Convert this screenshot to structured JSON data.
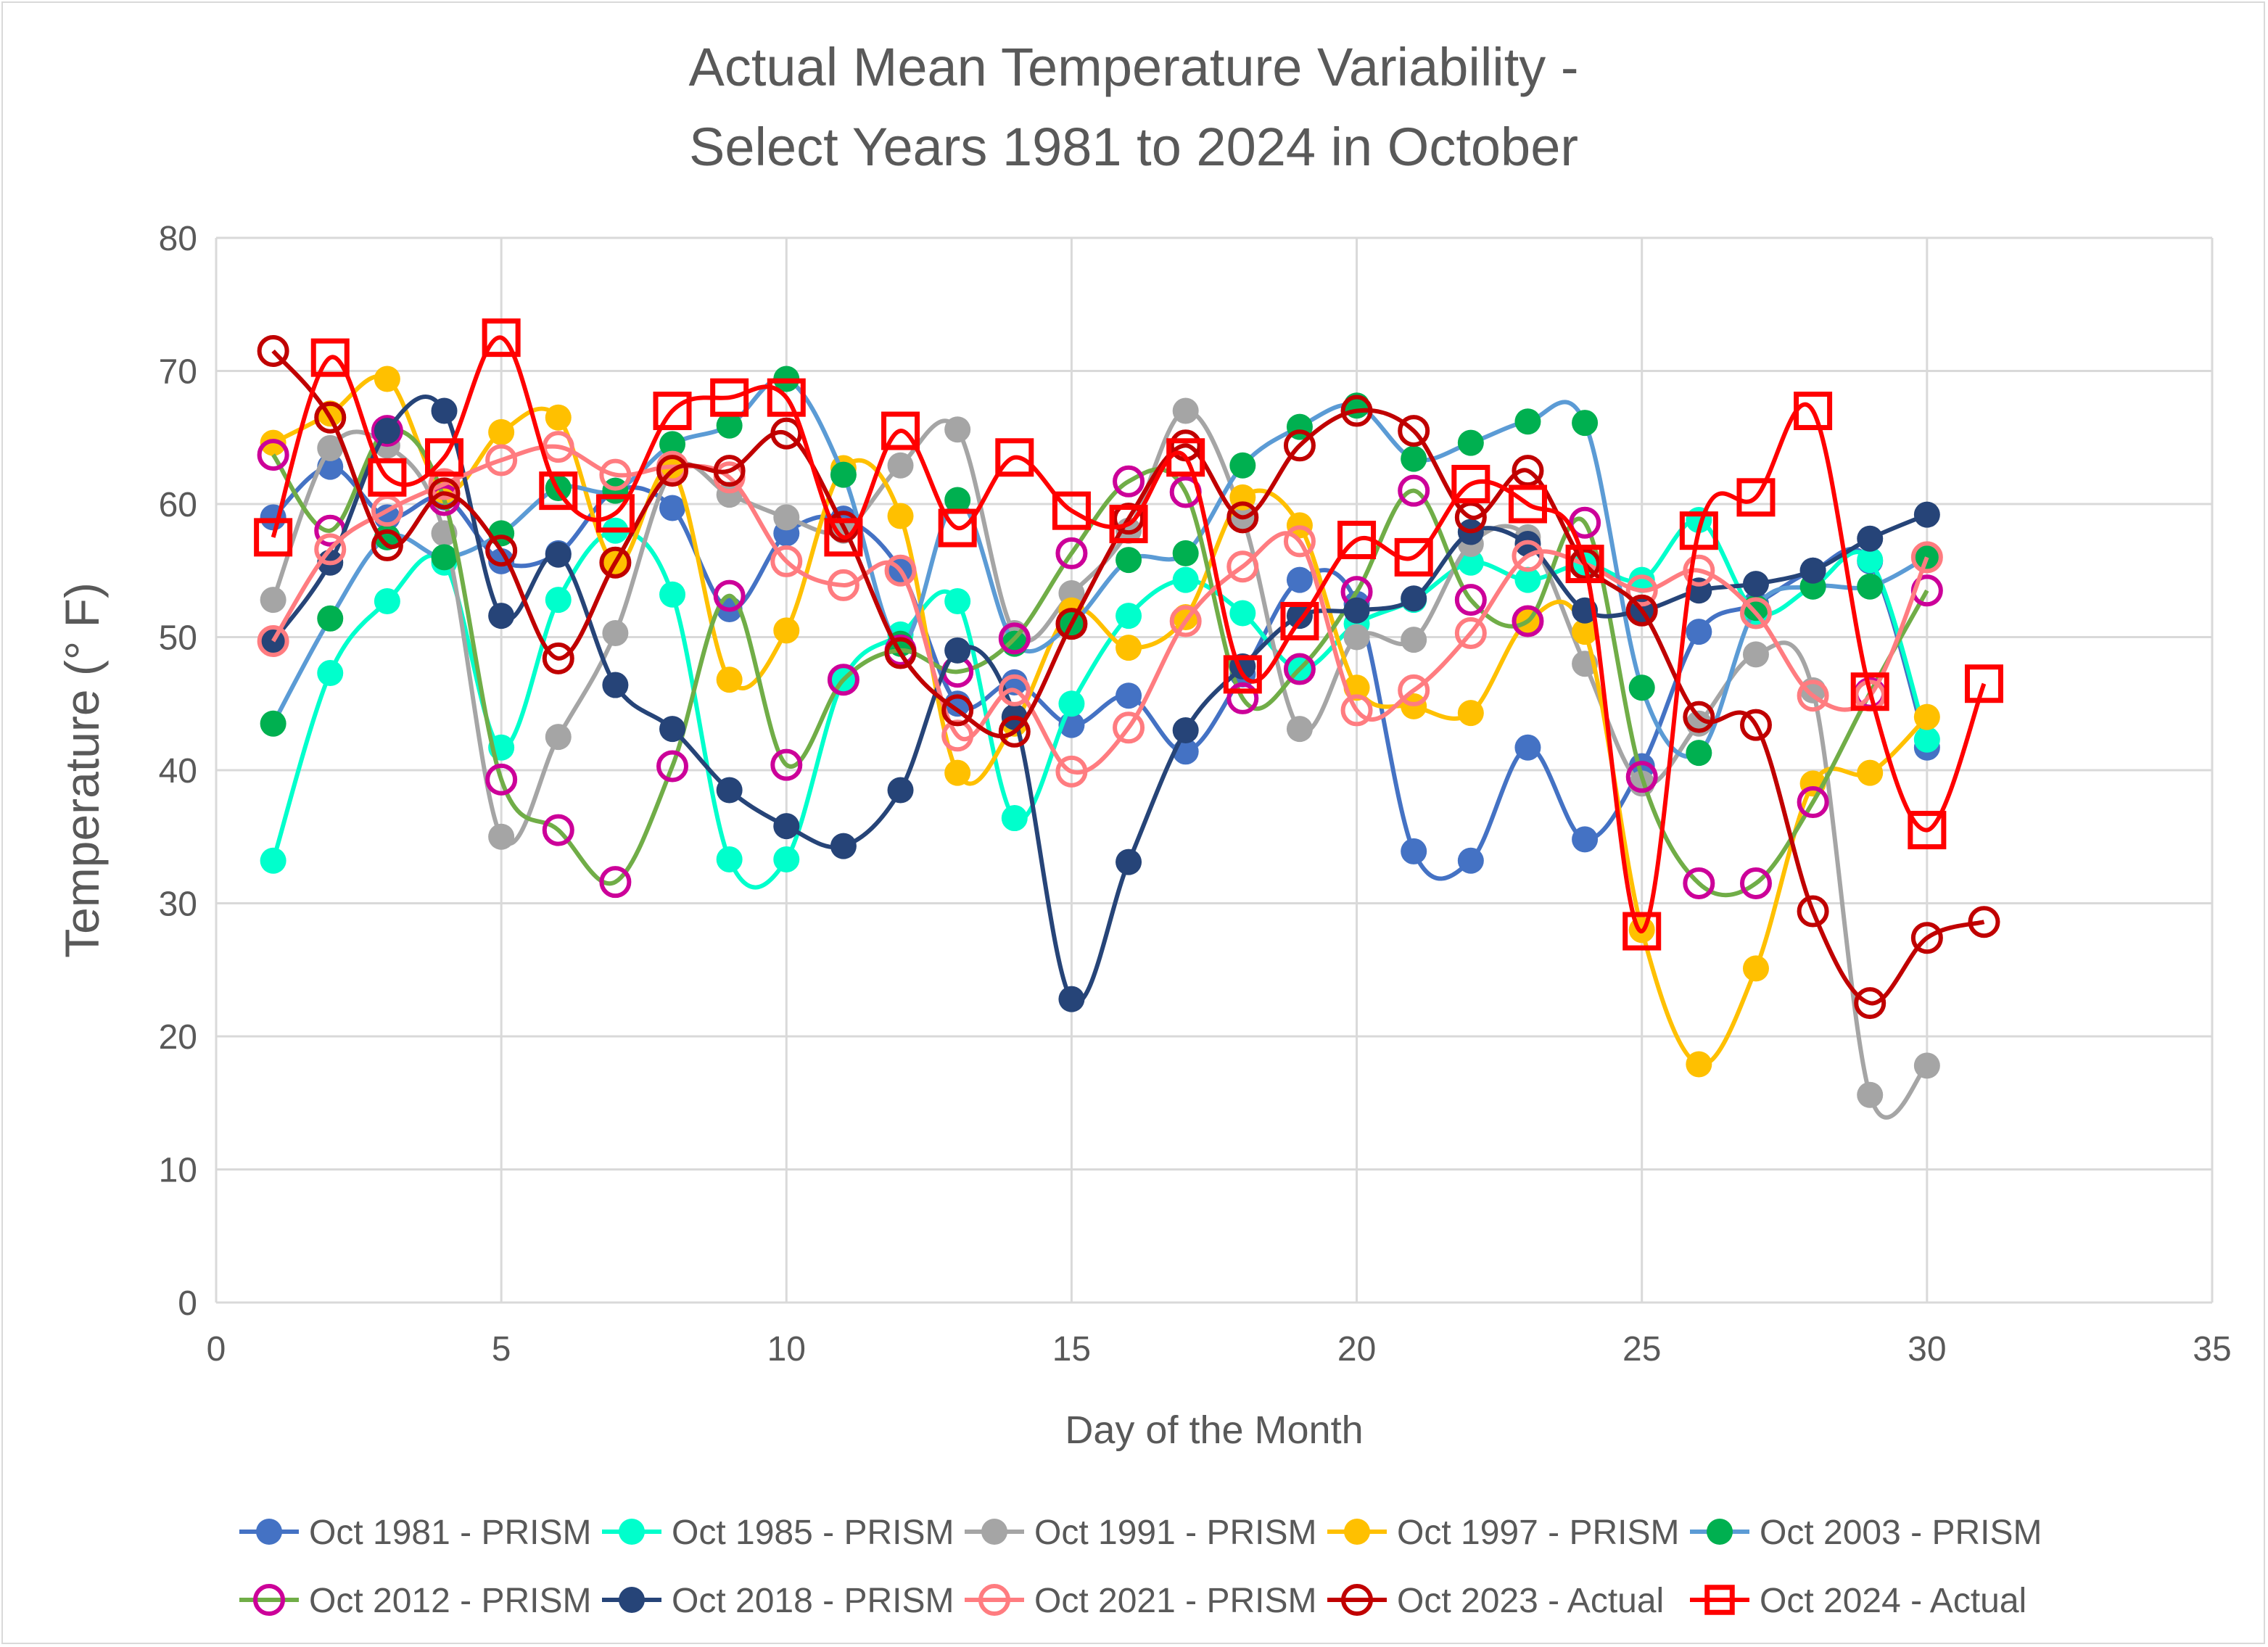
{
  "chart_data": {
    "type": "line",
    "title_lines": [
      "Actual Mean Temperature Variability -",
      "Select Years 1981 to 2024 in October"
    ],
    "xlabel": "Day of the Month",
    "ylabel": "Temperature (° F)",
    "xlim": [
      0,
      35
    ],
    "ylim": [
      0,
      80
    ],
    "xticks": [
      0,
      5,
      10,
      15,
      20,
      25,
      30,
      35
    ],
    "yticks": [
      0,
      10,
      20,
      30,
      40,
      50,
      60,
      70,
      80
    ],
    "grid": true,
    "legend_position": "bottom",
    "series": [
      {
        "name": "Oct 1981 - PRISM",
        "color": "#4472C4",
        "line": "#4472C4",
        "marker": "filled-circle",
        "values": [
          59,
          62.8,
          59,
          60.5,
          55.7,
          56.3,
          61,
          59.7,
          52.1,
          57.8,
          58.9,
          55,
          45,
          46.6,
          43.4,
          45.6,
          41.4,
          47.2,
          54.3,
          52.5,
          33.9,
          33.2,
          41.7,
          34.8,
          40.3,
          50.4,
          52.5,
          55,
          55.7,
          41.7
        ]
      },
      {
        "name": "Oct 1985 - PRISM",
        "color": "#00FFCC",
        "line": "#00FFCC",
        "marker": "filled-circle",
        "values": [
          33.2,
          47.3,
          52.7,
          55.6,
          41.7,
          52.8,
          58,
          53.2,
          33.3,
          33.3,
          46.8,
          50.2,
          52.7,
          36.4,
          45,
          51.6,
          54.3,
          51.8,
          47.6,
          51,
          52.8,
          55.6,
          54.3,
          55.5,
          54.3,
          58.8,
          51.9,
          53.8,
          55.8,
          42.3
        ]
      },
      {
        "name": "Oct 1991 - PRISM",
        "color": "#A5A5A5",
        "line": "#A5A5A5",
        "marker": "filled-circle",
        "values": [
          52.8,
          64.2,
          64.4,
          57.8,
          35,
          42.5,
          50.3,
          62.5,
          60.7,
          59,
          58,
          62.9,
          65.6,
          50.3,
          53.3,
          58,
          67,
          59,
          43.1,
          50,
          49.8,
          57,
          57.5,
          48,
          39,
          43.5,
          48.7,
          46,
          15.6,
          17.8
        ]
      },
      {
        "name": "Oct 1997 - PRISM",
        "color": "#FFC000",
        "line": "#FFC000",
        "marker": "filled-circle",
        "values": [
          64.6,
          66.8,
          69.4,
          61,
          65.4,
          66.5,
          55.5,
          62.5,
          46.8,
          50.5,
          62.7,
          59.1,
          39.8,
          43.5,
          52,
          49.2,
          51.5,
          60.5,
          58.4,
          46.2,
          44.8,
          44.3,
          51.2,
          50.4,
          28,
          17.9,
          25.1,
          39,
          39.8,
          44
        ]
      },
      {
        "name": "Oct 2003 - PRISM",
        "color": "#00B050",
        "line": "#5B9BD5",
        "marker": "filled-circle",
        "values": [
          43.5,
          51.4,
          57.5,
          56,
          57.8,
          61.2,
          61,
          64.5,
          65.9,
          69.4,
          62.2,
          49.5,
          60.3,
          49.5,
          51,
          55.8,
          56.3,
          62.9,
          65.8,
          67.4,
          63.4,
          64.6,
          66.2,
          66.1,
          46.2,
          41.3,
          52.2,
          53.8,
          53.8,
          56
        ]
      },
      {
        "name": "Oct 2012 - PRISM",
        "color": "#CC0099",
        "line": "#70AD47",
        "marker": "open-circle",
        "values": [
          63.7,
          58,
          65.5,
          60.3,
          39.3,
          35.5,
          31.6,
          40.3,
          53.1,
          40.4,
          46.8,
          49,
          47.4,
          49.9,
          56.3,
          61.7,
          60.9,
          45.4,
          47.6,
          53.4,
          61,
          52.8,
          51.2,
          58.6,
          39.5,
          31.5,
          31.5,
          37.6,
          45.8,
          53.5
        ]
      },
      {
        "name": "Oct 2018 - PRISM",
        "color": "#264478",
        "line": "#264478",
        "marker": "filled-circle",
        "values": [
          49.7,
          55.6,
          65.5,
          67,
          51.6,
          56.2,
          46.4,
          43.1,
          38.5,
          35.8,
          34.3,
          38.5,
          49,
          44,
          22.8,
          33.1,
          43,
          47.8,
          51.6,
          52,
          52.9,
          57.9,
          57,
          52,
          52,
          53.5,
          54,
          55,
          57.4,
          59.2
        ]
      },
      {
        "name": "Oct 2021 - PRISM",
        "color": "#FF7C80",
        "line": "#FF7C80",
        "marker": "open-circle",
        "values": [
          49.7,
          56.6,
          59.5,
          61.5,
          63.3,
          64.3,
          62.2,
          62.8,
          62,
          55.7,
          53.9,
          55,
          42.6,
          46,
          39.9,
          43.2,
          51.2,
          55.3,
          57.2,
          44.5,
          46,
          50.3,
          56.1,
          55.5,
          53.5,
          55,
          51.8,
          45.6,
          45.6,
          56
        ]
      },
      {
        "name": "Oct 2023 - Actual",
        "color": "#C00000",
        "line": "#C00000",
        "marker": "open-circle",
        "values": [
          71.5,
          66.5,
          56.9,
          60.8,
          56.5,
          48.4,
          55.6,
          62.5,
          62.5,
          65.3,
          58.3,
          48.8,
          44.5,
          42.9,
          51,
          58.9,
          64.4,
          59,
          64.4,
          67,
          65.5,
          59,
          62.5,
          55.5,
          52,
          44,
          43.4,
          29.4,
          22.5,
          27.4,
          28.6
        ]
      },
      {
        "name": "Oct 2024 - Actual",
        "color": "#FF0000",
        "line": "#FF0000",
        "marker": "open-square",
        "values": [
          57.5,
          71,
          62,
          63.5,
          72.5,
          61,
          59.3,
          67,
          68,
          68,
          57.5,
          65.5,
          58.2,
          63.5,
          59.5,
          58.5,
          63.5,
          47.2,
          51.2,
          57.3,
          56,
          61.5,
          60,
          55.5,
          27.9,
          58,
          60.5,
          67,
          45.9,
          35.5,
          46.5
        ]
      }
    ]
  }
}
